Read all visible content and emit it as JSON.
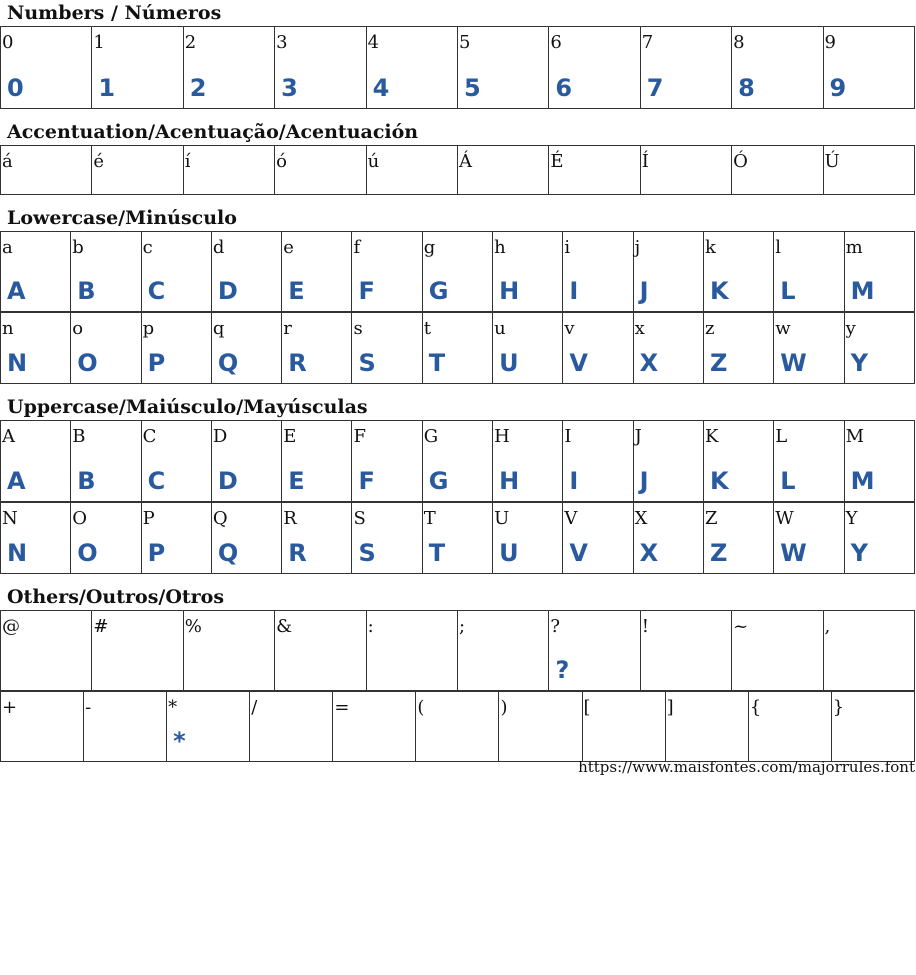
{
  "glyph_color": "#2a5a9e",
  "sections": [
    {
      "title": "Numbers / Números",
      "rows": [
        [
          [
            "0",
            "0"
          ],
          [
            "1",
            "1"
          ],
          [
            "2",
            "2"
          ],
          [
            "3",
            "3"
          ],
          [
            "4",
            "4"
          ],
          [
            "5",
            "5"
          ],
          [
            "6",
            "6"
          ],
          [
            "7",
            "7"
          ],
          [
            "8",
            "8"
          ],
          [
            "9",
            "9"
          ]
        ]
      ],
      "h": [
        82
      ]
    },
    {
      "title": "Accentuation/Acentuação/Acentuación",
      "rows": [
        [
          [
            "á",
            ""
          ],
          [
            "é",
            ""
          ],
          [
            "í",
            ""
          ],
          [
            "ó",
            ""
          ],
          [
            "ú",
            ""
          ],
          [
            "Á",
            ""
          ],
          [
            "É",
            ""
          ],
          [
            "Í",
            ""
          ],
          [
            "Ó",
            ""
          ],
          [
            "Ú",
            ""
          ]
        ]
      ],
      "h": [
        49
      ]
    },
    {
      "title": "Lowercase/Minúsculo",
      "rows": [
        [
          [
            "a",
            "A"
          ],
          [
            "b",
            "B"
          ],
          [
            "c",
            "C"
          ],
          [
            "d",
            "D"
          ],
          [
            "e",
            "E"
          ],
          [
            "f",
            "F"
          ],
          [
            "g",
            "G"
          ],
          [
            "h",
            "H"
          ],
          [
            "i",
            "I"
          ],
          [
            "j",
            "J"
          ],
          [
            "k",
            "K"
          ],
          [
            "l",
            "L"
          ],
          [
            "m",
            "M"
          ]
        ],
        [
          [
            "n",
            "N"
          ],
          [
            "o",
            "O"
          ],
          [
            "p",
            "P"
          ],
          [
            "q",
            "Q"
          ],
          [
            "r",
            "R"
          ],
          [
            "s",
            "S"
          ],
          [
            "t",
            "T"
          ],
          [
            "u",
            "U"
          ],
          [
            "v",
            "V"
          ],
          [
            "x",
            "X"
          ],
          [
            "z",
            "Z"
          ],
          [
            "w",
            "W"
          ],
          [
            "y",
            "Y"
          ]
        ]
      ],
      "h": [
        80,
        71
      ]
    },
    {
      "title": "Uppercase/Maiúsculo/Mayúsculas",
      "rows": [
        [
          [
            "A",
            "A"
          ],
          [
            "B",
            "B"
          ],
          [
            "C",
            "C"
          ],
          [
            "D",
            "D"
          ],
          [
            "E",
            "E"
          ],
          [
            "F",
            "F"
          ],
          [
            "G",
            "G"
          ],
          [
            "H",
            "H"
          ],
          [
            "I",
            "I"
          ],
          [
            "J",
            "J"
          ],
          [
            "K",
            "K"
          ],
          [
            "L",
            "L"
          ],
          [
            "M",
            "M"
          ]
        ],
        [
          [
            "N",
            "N"
          ],
          [
            "O",
            "O"
          ],
          [
            "P",
            "P"
          ],
          [
            "Q",
            "Q"
          ],
          [
            "R",
            "R"
          ],
          [
            "S",
            "S"
          ],
          [
            "T",
            "T"
          ],
          [
            "U",
            "U"
          ],
          [
            "V",
            "V"
          ],
          [
            "X",
            "X"
          ],
          [
            "Z",
            "Z"
          ],
          [
            "W",
            "W"
          ],
          [
            "Y",
            "Y"
          ]
        ]
      ],
      "h": [
        81,
        71
      ]
    },
    {
      "title": "Others/Outros/Otros",
      "rows": [
        [
          [
            "@",
            ""
          ],
          [
            "#",
            ""
          ],
          [
            "%",
            ""
          ],
          [
            "&",
            ""
          ],
          [
            ":",
            ""
          ],
          [
            ";",
            ""
          ],
          [
            "?",
            "?"
          ],
          [
            "!",
            ""
          ],
          [
            "~",
            ""
          ],
          [
            ",",
            ""
          ]
        ],
        [
          [
            "+",
            ""
          ],
          [
            "-",
            ""
          ],
          [
            "*",
            "*"
          ],
          [
            "/",
            ""
          ],
          [
            "=",
            ""
          ],
          [
            "(",
            ""
          ],
          [
            ")",
            ""
          ],
          [
            "[",
            ""
          ],
          [
            "]",
            ""
          ],
          [
            "{",
            ""
          ],
          [
            "}",
            ""
          ]
        ]
      ],
      "h": [
        80,
        70
      ]
    }
  ],
  "footer": "https://www.maisfontes.com/majorrules.font"
}
